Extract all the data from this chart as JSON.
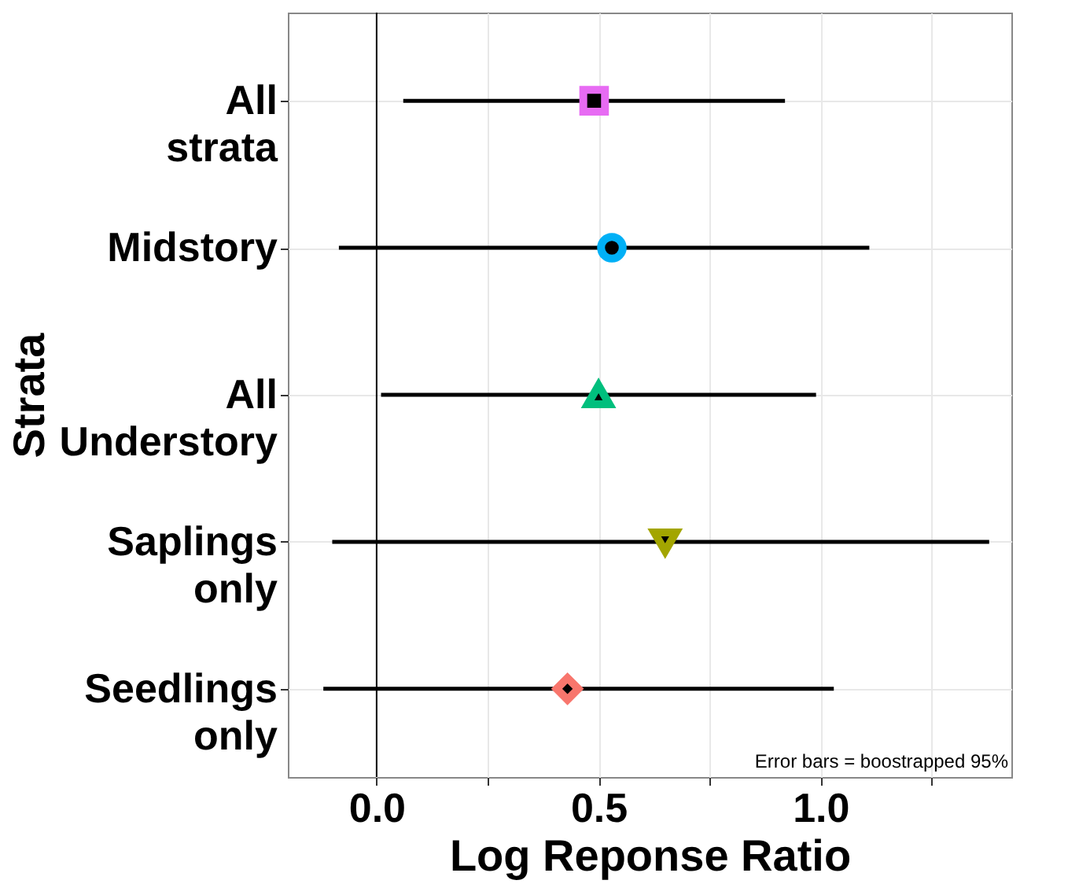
{
  "chart_data": {
    "type": "scatter",
    "orientation": "horizontal",
    "xlabel": "Log Reponse Ratio",
    "ylabel": "Strata",
    "categories": [
      "All strata",
      "Midstory",
      "All Understory",
      "Saplings only",
      "Seedlings only"
    ],
    "series": [
      {
        "color": "#e76bf3",
        "marker": "square",
        "values": [
          0.49,
          null,
          null,
          null,
          null
        ],
        "errors": [
          [
            0.06,
            0.92
          ],
          null,
          null,
          null,
          null
        ]
      },
      {
        "color": "#00b0f6",
        "marker": "circle",
        "values": [
          null,
          0.53,
          null,
          null,
          null
        ],
        "errors": [
          null,
          [
            -0.085,
            1.11
          ],
          null,
          null,
          null
        ]
      },
      {
        "color": "#00bf7d",
        "marker": "triangle",
        "values": [
          null,
          null,
          0.5,
          null,
          null
        ],
        "errors": [
          null,
          null,
          [
            0.01,
            0.99
          ],
          null,
          null
        ]
      },
      {
        "color": "#a3a500",
        "marker": "triangle-down",
        "values": [
          null,
          null,
          null,
          0.65,
          null
        ],
        "errors": [
          null,
          null,
          null,
          [
            -0.1,
            1.38
          ],
          null
        ]
      },
      {
        "color": "#f8766d",
        "marker": "diamond",
        "values": [
          null,
          null,
          null,
          null,
          0.43
        ],
        "errors": [
          null,
          null,
          null,
          null,
          [
            -0.12,
            1.03
          ]
        ]
      }
    ],
    "xlim": [
      -0.2,
      1.43
    ],
    "xticks": [
      {
        "value": 0,
        "label": "0.0"
      },
      {
        "value": 0.25,
        "label": null
      },
      {
        "value": 0.5,
        "label": "0.5"
      },
      {
        "value": 0.75,
        "label": null
      },
      {
        "value": 1.0,
        "label": "1.0"
      },
      {
        "value": 1.25,
        "label": null
      }
    ],
    "ref_lines": [
      {
        "axis": "x",
        "value": 0,
        "color": "#000000"
      }
    ],
    "annotations": [
      "Error bars = boostrapped 95%"
    ],
    "grid": true
  }
}
